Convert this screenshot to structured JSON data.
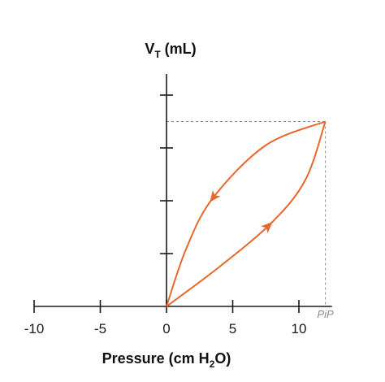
{
  "chart_data": {
    "type": "line",
    "title": "",
    "xlabel": {
      "main": "Pressure (cm H",
      "sub": "2",
      "tail": "O)"
    },
    "ylabel": {
      "main": "V",
      "sub": "T",
      "tail": " (mL)"
    },
    "xlim": [
      -10,
      12.5
    ],
    "ylim": [
      0,
      4.4
    ],
    "x_ticks": [
      -10,
      -5,
      0,
      5,
      10
    ],
    "x_tick_labels": [
      "-10",
      "-5",
      "0",
      "5",
      "10"
    ],
    "y_ticks": [
      1,
      2,
      3,
      4
    ],
    "y_tick_labels": [],
    "pip": {
      "label": "PiP",
      "x": 12,
      "y": 3.5
    },
    "color": "#e8682a",
    "series": [
      {
        "key": "inspiration",
        "points": [
          [
            0,
            0
          ],
          [
            4,
            0.75
          ],
          [
            8,
            1.6
          ],
          [
            10.5,
            2.4
          ],
          [
            12,
            3.5
          ]
        ],
        "arrow_at": [
          8.6,
          1.28
        ]
      },
      {
        "key": "expiration",
        "points": [
          [
            12,
            3.5
          ],
          [
            7.5,
            3.05
          ],
          [
            3.5,
            2.05
          ],
          [
            1.5,
            1.1
          ],
          [
            0,
            0
          ]
        ],
        "arrow_at": [
          3.8,
          2.0
        ]
      }
    ]
  }
}
